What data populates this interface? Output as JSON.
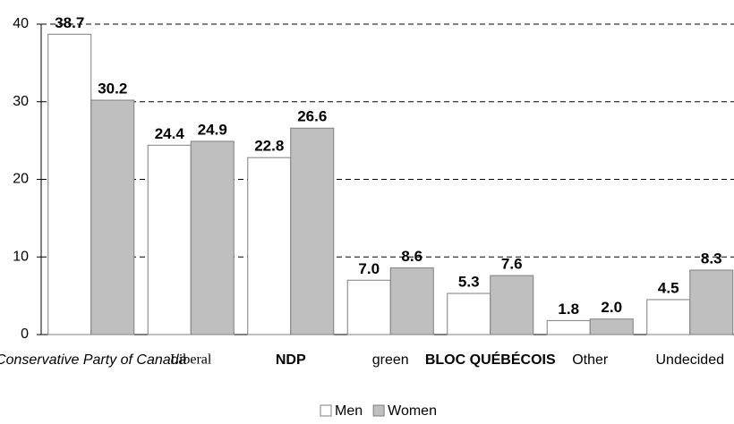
{
  "chart_data": {
    "type": "bar",
    "categories": [
      "Conservative Party of Canada",
      "Liberal",
      "NDP",
      "green",
      "BLOC QUÉBÉCOIS",
      "Other",
      "Undecided"
    ],
    "series": [
      {
        "name": "Men",
        "color": "#ffffff",
        "values": [
          38.7,
          24.4,
          22.8,
          7.0,
          5.3,
          1.8,
          4.5
        ],
        "value_labels": [
          "38.7",
          "24.4",
          "22.8",
          "7.0",
          "5.3",
          "1.8",
          "4.5"
        ]
      },
      {
        "name": "Women",
        "color": "#bfbfbf",
        "values": [
          30.2,
          24.9,
          26.6,
          8.6,
          7.6,
          2.0,
          8.3
        ],
        "value_labels": [
          "30.2",
          "24.9",
          "26.6",
          "8.6",
          "7.6",
          "2.0",
          "8.3"
        ]
      }
    ],
    "ylim": [
      0,
      40
    ],
    "yticks": [
      0,
      10,
      20,
      30,
      40
    ],
    "grid": true,
    "legend": "bottom"
  }
}
